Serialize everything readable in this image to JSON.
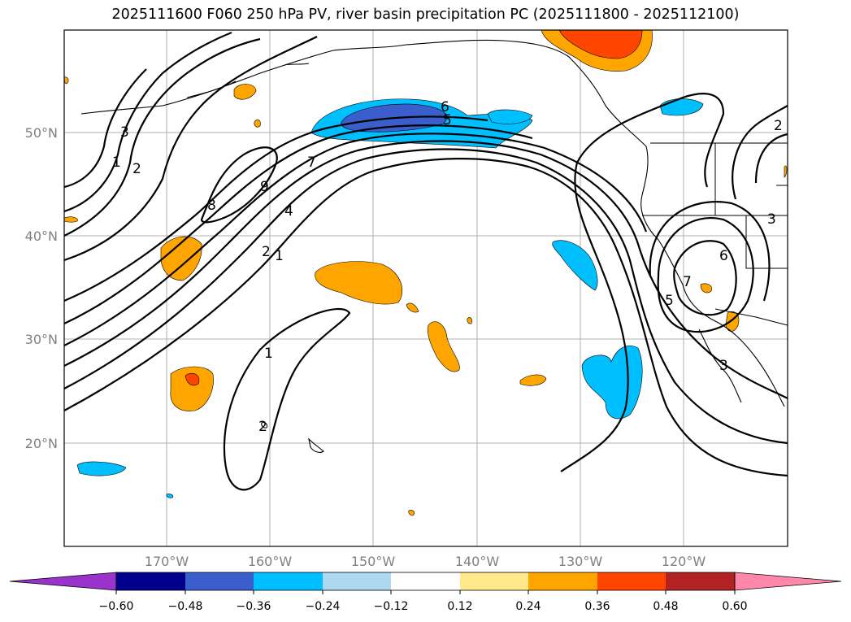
{
  "title": "2025111600 F060 250 hPa PV, river basin precipitation PC (2025111800 - 2025112100)",
  "latitude_labels": [
    "50°N",
    "40°N",
    "30°N",
    "20°N"
  ],
  "longitude_labels": [
    "170°W",
    "160°W",
    "150°W",
    "140°W",
    "130°W",
    "120°W"
  ],
  "contour_labels": [
    "6",
    "5",
    "7",
    "4",
    "2",
    "1",
    "9",
    "8",
    "3",
    "2",
    "1",
    "1",
    "2",
    "6",
    "7",
    "5",
    "3",
    "3",
    "2"
  ],
  "colorbar": {
    "ticks": [
      "−0.60",
      "−0.48",
      "−0.36",
      "−0.24",
      "−0.12",
      "0.12",
      "0.24",
      "0.36",
      "0.48",
      "0.60"
    ],
    "colors": [
      "#9933cc",
      "#00008b",
      "#3a5fcd",
      "#00bfff",
      "#add8f0",
      "#ffffff",
      "#ffe88a",
      "#ffa500",
      "#ff4500",
      "#b22222",
      "#ff88aa"
    ]
  }
}
